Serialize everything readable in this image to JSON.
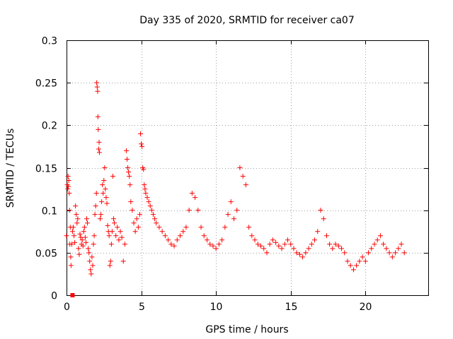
{
  "chart_data": {
    "type": "scatter",
    "title": "Day 335 of 2020, SRMTID for receiver ca07",
    "xlabel": "GPS time / hours",
    "ylabel": "SRMTID / TECUs",
    "xlim": [
      0,
      24.2
    ],
    "ylim": [
      0,
      0.3
    ],
    "xticks": [
      0,
      5,
      10,
      15,
      20
    ],
    "xtick_labels": [
      "0",
      "5",
      "10",
      "15",
      "20"
    ],
    "yticks": [
      0,
      0.05,
      0.1,
      0.15,
      0.2,
      0.25,
      0.3
    ],
    "ytick_labels": [
      "0",
      "0.05",
      "0.1",
      "0.15",
      "0.2",
      "0.25",
      "0.3"
    ],
    "grid": true,
    "marker": "plus",
    "color": "#ff0000",
    "outlier_marker": {
      "shape": "square",
      "x": 0.4,
      "y": 0.0
    },
    "series": [
      {
        "name": "SRMTID",
        "points": [
          [
            0.0,
            0.07
          ],
          [
            0.05,
            0.13
          ],
          [
            0.08,
            0.125
          ],
          [
            0.1,
            0.14
          ],
          [
            0.12,
            0.128
          ],
          [
            0.15,
            0.135
          ],
          [
            0.18,
            0.12
          ],
          [
            0.2,
            0.1
          ],
          [
            0.22,
            0.06
          ],
          [
            0.25,
            0.08
          ],
          [
            0.28,
            0.045
          ],
          [
            0.3,
            0.035
          ],
          [
            0.35,
            0.06
          ],
          [
            0.4,
            0.075
          ],
          [
            0.45,
            0.08
          ],
          [
            0.5,
            0.07
          ],
          [
            0.55,
            0.062
          ],
          [
            0.6,
            0.105
          ],
          [
            0.65,
            0.095
          ],
          [
            0.7,
            0.085
          ],
          [
            0.75,
            0.09
          ],
          [
            0.8,
            0.055
          ],
          [
            0.85,
            0.048
          ],
          [
            0.9,
            0.072
          ],
          [
            0.95,
            0.068
          ],
          [
            1.0,
            0.06
          ],
          [
            1.05,
            0.065
          ],
          [
            1.1,
            0.058
          ],
          [
            1.15,
            0.075
          ],
          [
            1.2,
            0.08
          ],
          [
            1.25,
            0.068
          ],
          [
            1.3,
            0.062
          ],
          [
            1.35,
            0.09
          ],
          [
            1.4,
            0.085
          ],
          [
            1.45,
            0.055
          ],
          [
            1.5,
            0.05
          ],
          [
            1.55,
            0.04
          ],
          [
            1.6,
            0.03
          ],
          [
            1.65,
            0.025
          ],
          [
            1.7,
            0.045
          ],
          [
            1.75,
            0.035
          ],
          [
            1.8,
            0.06
          ],
          [
            1.85,
            0.07
          ],
          [
            1.9,
            0.095
          ],
          [
            1.95,
            0.105
          ],
          [
            2.0,
            0.12
          ],
          [
            2.02,
            0.25
          ],
          [
            2.05,
            0.245
          ],
          [
            2.08,
            0.24
          ],
          [
            2.1,
            0.21
          ],
          [
            2.12,
            0.195
          ],
          [
            2.15,
            0.172
          ],
          [
            2.18,
            0.18
          ],
          [
            2.2,
            0.168
          ],
          [
            2.25,
            0.09
          ],
          [
            2.3,
            0.095
          ],
          [
            2.35,
            0.11
          ],
          [
            2.4,
            0.13
          ],
          [
            2.45,
            0.12
          ],
          [
            2.5,
            0.135
          ],
          [
            2.55,
            0.15
          ],
          [
            2.6,
            0.125
          ],
          [
            2.65,
            0.115
          ],
          [
            2.7,
            0.108
          ],
          [
            2.75,
            0.082
          ],
          [
            2.8,
            0.075
          ],
          [
            2.85,
            0.07
          ],
          [
            2.9,
            0.035
          ],
          [
            2.95,
            0.04
          ],
          [
            3.0,
            0.06
          ],
          [
            3.05,
            0.075
          ],
          [
            3.1,
            0.14
          ],
          [
            3.15,
            0.09
          ],
          [
            3.2,
            0.085
          ],
          [
            3.3,
            0.07
          ],
          [
            3.4,
            0.08
          ],
          [
            3.5,
            0.065
          ],
          [
            3.6,
            0.075
          ],
          [
            3.7,
            0.068
          ],
          [
            3.8,
            0.04
          ],
          [
            3.9,
            0.06
          ],
          [
            4.0,
            0.17
          ],
          [
            4.05,
            0.16
          ],
          [
            4.1,
            0.15
          ],
          [
            4.15,
            0.145
          ],
          [
            4.2,
            0.14
          ],
          [
            4.25,
            0.13
          ],
          [
            4.3,
            0.11
          ],
          [
            4.4,
            0.1
          ],
          [
            4.5,
            0.085
          ],
          [
            4.6,
            0.075
          ],
          [
            4.7,
            0.09
          ],
          [
            4.8,
            0.08
          ],
          [
            4.9,
            0.095
          ],
          [
            4.95,
            0.19
          ],
          [
            5.0,
            0.178
          ],
          [
            5.05,
            0.175
          ],
          [
            5.1,
            0.15
          ],
          [
            5.15,
            0.148
          ],
          [
            5.2,
            0.13
          ],
          [
            5.25,
            0.125
          ],
          [
            5.3,
            0.12
          ],
          [
            5.4,
            0.115
          ],
          [
            5.5,
            0.11
          ],
          [
            5.6,
            0.105
          ],
          [
            5.7,
            0.1
          ],
          [
            5.8,
            0.095
          ],
          [
            5.9,
            0.09
          ],
          [
            6.0,
            0.085
          ],
          [
            6.2,
            0.08
          ],
          [
            6.4,
            0.075
          ],
          [
            6.6,
            0.07
          ],
          [
            6.8,
            0.065
          ],
          [
            7.0,
            0.06
          ],
          [
            7.2,
            0.058
          ],
          [
            7.4,
            0.065
          ],
          [
            7.6,
            0.07
          ],
          [
            7.8,
            0.075
          ],
          [
            8.0,
            0.08
          ],
          [
            8.2,
            0.1
          ],
          [
            8.4,
            0.12
          ],
          [
            8.6,
            0.115
          ],
          [
            8.8,
            0.1
          ],
          [
            9.0,
            0.08
          ],
          [
            9.2,
            0.07
          ],
          [
            9.4,
            0.065
          ],
          [
            9.6,
            0.06
          ],
          [
            9.8,
            0.058
          ],
          [
            10.0,
            0.055
          ],
          [
            10.2,
            0.06
          ],
          [
            10.4,
            0.065
          ],
          [
            10.6,
            0.08
          ],
          [
            10.8,
            0.095
          ],
          [
            11.0,
            0.11
          ],
          [
            11.2,
            0.09
          ],
          [
            11.4,
            0.1
          ],
          [
            11.6,
            0.15
          ],
          [
            11.8,
            0.14
          ],
          [
            12.0,
            0.13
          ],
          [
            12.2,
            0.08
          ],
          [
            12.4,
            0.07
          ],
          [
            12.6,
            0.065
          ],
          [
            12.8,
            0.06
          ],
          [
            13.0,
            0.058
          ],
          [
            13.2,
            0.055
          ],
          [
            13.4,
            0.05
          ],
          [
            13.6,
            0.06
          ],
          [
            13.8,
            0.065
          ],
          [
            14.0,
            0.062
          ],
          [
            14.2,
            0.058
          ],
          [
            14.4,
            0.055
          ],
          [
            14.6,
            0.06
          ],
          [
            14.8,
            0.065
          ],
          [
            15.0,
            0.06
          ],
          [
            15.2,
            0.055
          ],
          [
            15.4,
            0.05
          ],
          [
            15.6,
            0.048
          ],
          [
            15.8,
            0.045
          ],
          [
            16.0,
            0.05
          ],
          [
            16.2,
            0.055
          ],
          [
            16.4,
            0.06
          ],
          [
            16.6,
            0.065
          ],
          [
            16.8,
            0.075
          ],
          [
            17.0,
            0.1
          ],
          [
            17.2,
            0.09
          ],
          [
            17.4,
            0.07
          ],
          [
            17.6,
            0.06
          ],
          [
            17.8,
            0.055
          ],
          [
            18.0,
            0.06
          ],
          [
            18.2,
            0.058
          ],
          [
            18.4,
            0.055
          ],
          [
            18.6,
            0.05
          ],
          [
            18.8,
            0.04
          ],
          [
            19.0,
            0.035
          ],
          [
            19.2,
            0.03
          ],
          [
            19.4,
            0.035
          ],
          [
            19.6,
            0.04
          ],
          [
            19.8,
            0.045
          ],
          [
            20.0,
            0.04
          ],
          [
            20.2,
            0.05
          ],
          [
            20.4,
            0.055
          ],
          [
            20.6,
            0.06
          ],
          [
            20.8,
            0.065
          ],
          [
            21.0,
            0.07
          ],
          [
            21.2,
            0.06
          ],
          [
            21.4,
            0.055
          ],
          [
            21.6,
            0.05
          ],
          [
            21.8,
            0.045
          ],
          [
            22.0,
            0.05
          ],
          [
            22.2,
            0.055
          ],
          [
            22.4,
            0.06
          ],
          [
            22.6,
            0.05
          ]
        ]
      }
    ]
  }
}
